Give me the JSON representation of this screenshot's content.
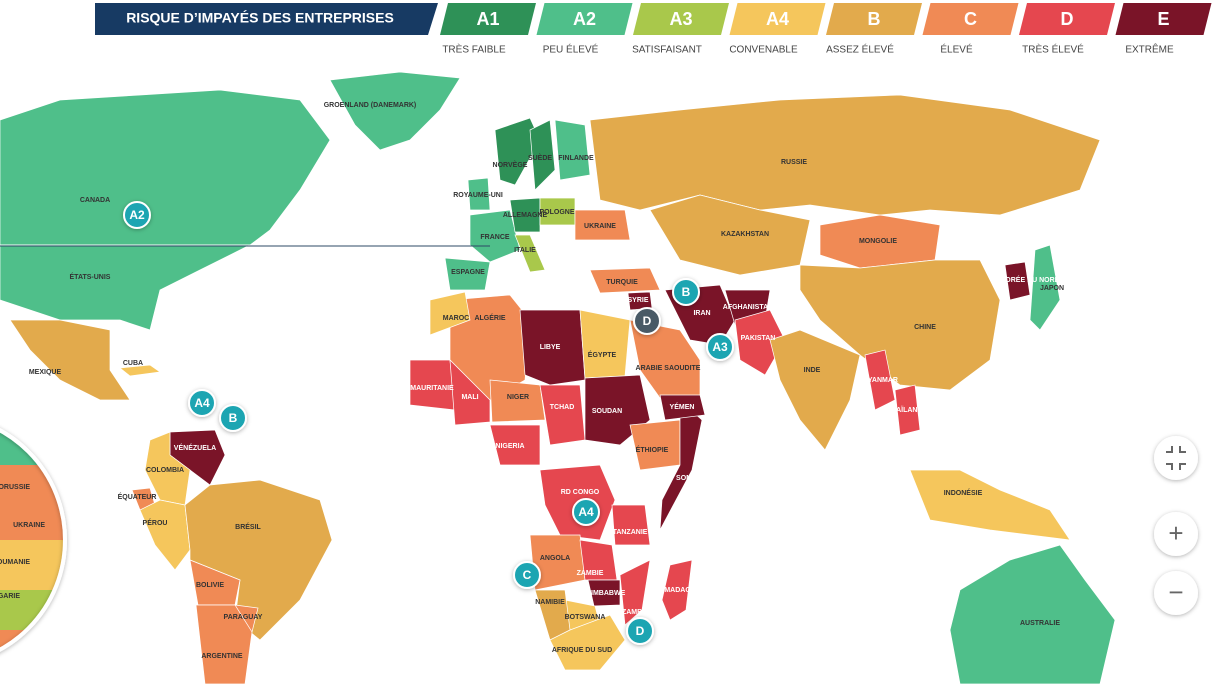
{
  "header": {
    "title": "RISQUE D’IMPAYÉS DES ENTREPRISES",
    "levels": [
      {
        "code": "A1",
        "label": "TRÈS FAIBLE",
        "color": "#2e9157"
      },
      {
        "code": "A2",
        "label": "PEU ÉLEVÉ",
        "color": "#4fbf8a"
      },
      {
        "code": "A3",
        "label": "SATISFAISANT",
        "color": "#a9c84b"
      },
      {
        "code": "A4",
        "label": "CONVENABLE",
        "color": "#f5c65c"
      },
      {
        "code": "B",
        "label": "ASSEZ ÉLEVÉ",
        "color": "#e2aa4c"
      },
      {
        "code": "C",
        "label": "ÉLEVÉ",
        "color": "#f08a55"
      },
      {
        "code": "D",
        "label": "TRÈS ÉLEVÉ",
        "color": "#e5474f"
      },
      {
        "code": "E",
        "label": "EXTRÊME",
        "color": "#7a1428"
      }
    ]
  },
  "countries": [
    {
      "name": "GROENLAND (DANEMARK)",
      "level": "A2"
    },
    {
      "name": "CANADA",
      "level": "A2"
    },
    {
      "name": "ÉTATS-UNIS",
      "level": "A2"
    },
    {
      "name": "MEXIQUE",
      "level": "B"
    },
    {
      "name": "CUBA",
      "level": "A4"
    },
    {
      "name": "VÉNÉZUELA",
      "level": "E"
    },
    {
      "name": "COLOMBIA",
      "level": "A4"
    },
    {
      "name": "ÉQUATEUR",
      "level": "C"
    },
    {
      "name": "PÉROU",
      "level": "A4"
    },
    {
      "name": "BRÉSIL",
      "level": "B"
    },
    {
      "name": "BOLIVIE",
      "level": "C"
    },
    {
      "name": "PARAGUAY",
      "level": "C"
    },
    {
      "name": "ARGENTINE",
      "level": "C"
    },
    {
      "name": "ALGÉRIE",
      "level": "C"
    },
    {
      "name": "LIBYE",
      "level": "E"
    },
    {
      "name": "ÉGYPTE",
      "level": "A4"
    },
    {
      "name": "MAURITANIE",
      "level": "D"
    },
    {
      "name": "MALI",
      "level": "D"
    },
    {
      "name": "NIGER",
      "level": "C"
    },
    {
      "name": "TCHAD",
      "level": "D"
    },
    {
      "name": "SOUDAN",
      "level": "E"
    },
    {
      "name": "NIGERIA",
      "level": "D"
    },
    {
      "name": "ÉTHIOPIE",
      "level": "C"
    },
    {
      "name": "SOMALIE",
      "level": "E"
    },
    {
      "name": "RD CONGO",
      "level": "D"
    },
    {
      "name": "ANGOLA",
      "level": "C"
    },
    {
      "name": "ZAMBIE",
      "level": "D"
    },
    {
      "name": "ZIMBABWE",
      "level": "E"
    },
    {
      "name": "BOTSWANA",
      "level": "A4"
    },
    {
      "name": "NAMIBIE",
      "level": "B"
    },
    {
      "name": "AFRIQUE DU SUD",
      "level": "A4"
    },
    {
      "name": "MADAGASCAR",
      "level": "D"
    },
    {
      "name": "TANZANIE",
      "level": "D"
    },
    {
      "name": "MOZAMBIQUE",
      "level": "D"
    },
    {
      "name": "ARABIE SAOUDITE",
      "level": "C"
    },
    {
      "name": "YÉMEN",
      "level": "E"
    },
    {
      "name": "IRAN",
      "level": "E"
    },
    {
      "name": "TURQUIE",
      "level": "C"
    },
    {
      "name": "SYRIE",
      "level": "E"
    },
    {
      "name": "AFGHANISTAN",
      "level": "E"
    },
    {
      "name": "PAKISTAN",
      "level": "D"
    },
    {
      "name": "RUSSIE",
      "level": "B"
    },
    {
      "name": "KAZAKHSTAN",
      "level": "B"
    },
    {
      "name": "MONGOLIE",
      "level": "C"
    },
    {
      "name": "CHINE",
      "level": "B"
    },
    {
      "name": "INDE",
      "level": "B"
    },
    {
      "name": "CORÉE DU NORD",
      "level": "E"
    },
    {
      "name": "JAPON",
      "level": "A2"
    },
    {
      "name": "MYANMAR",
      "level": "D"
    },
    {
      "name": "THAÏLANDE",
      "level": "D"
    },
    {
      "name": "INDONÉSIE",
      "level": "A4"
    },
    {
      "name": "AUSTRALIE",
      "level": "A2"
    },
    {
      "name": "FRANCE",
      "level": "A2"
    },
    {
      "name": "ESPAGNE",
      "level": "A2"
    },
    {
      "name": "ALLEMAGNE",
      "level": "A1"
    },
    {
      "name": "POLOGNE",
      "level": "A3"
    },
    {
      "name": "UKRAINE",
      "level": "C"
    },
    {
      "name": "ROYAUME-UNI",
      "level": "A2"
    },
    {
      "name": "NORVÈGE",
      "level": "A1"
    },
    {
      "name": "SUÈDE",
      "level": "A1"
    },
    {
      "name": "FINLANDE",
      "level": "A2"
    },
    {
      "name": "ITALIE",
      "level": "A3"
    },
    {
      "name": "MAROC",
      "level": "A4"
    }
  ],
  "inset": {
    "labels": [
      "BIELORUSSIE",
      "UKRAINE",
      "ROUMANIE",
      "BULGARIE"
    ]
  },
  "bubbles": [
    "A2",
    "A4",
    "B",
    "B",
    "D",
    "A3",
    "A4",
    "C",
    "D"
  ],
  "controls": {
    "zoom_in": "+",
    "zoom_out": "−"
  }
}
